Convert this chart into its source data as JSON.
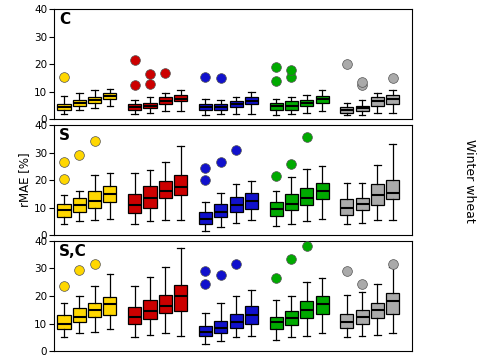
{
  "panel_labels": [
    "C",
    "S",
    "S,C"
  ],
  "ylabel": "rMAE [%]",
  "right_label": "Winter wheat",
  "ylim": [
    0,
    40
  ],
  "yticks": [
    0,
    10,
    20,
    30,
    40
  ],
  "colors": {
    "yellow": "#FFD700",
    "red": "#CC0000",
    "blue": "#1111CC",
    "green": "#00AA00",
    "gray": "#AAAAAA"
  },
  "panel_C": {
    "groups": [
      {
        "color": "yellow",
        "boxes": [
          {
            "whislo": 2.0,
            "q1": 3.5,
            "med": 4.5,
            "q3": 5.5,
            "whishi": 8.5,
            "fliers": [
              15.5
            ]
          },
          {
            "whislo": 3.5,
            "q1": 5.0,
            "med": 6.0,
            "q3": 7.0,
            "whishi": 9.5,
            "fliers": []
          },
          {
            "whislo": 4.0,
            "q1": 6.0,
            "med": 7.0,
            "q3": 8.0,
            "whishi": 10.5,
            "fliers": []
          },
          {
            "whislo": 5.0,
            "q1": 7.5,
            "med": 8.5,
            "q3": 9.5,
            "whishi": 11.0,
            "fliers": []
          }
        ]
      },
      {
        "color": "red",
        "boxes": [
          {
            "whislo": 2.0,
            "q1": 3.5,
            "med": 4.5,
            "q3": 5.5,
            "whishi": 7.0,
            "fliers": [
              12.5,
              21.5
            ]
          },
          {
            "whislo": 2.5,
            "q1": 4.0,
            "med": 5.0,
            "q3": 6.0,
            "whishi": 8.0,
            "fliers": [
              13.0,
              16.5
            ]
          },
          {
            "whislo": 3.0,
            "q1": 5.5,
            "med": 6.5,
            "q3": 8.0,
            "whishi": 9.5,
            "fliers": [
              17.0
            ]
          },
          {
            "whislo": 3.0,
            "q1": 6.5,
            "med": 7.5,
            "q3": 9.0,
            "whishi": 10.5,
            "fliers": []
          }
        ]
      },
      {
        "color": "blue",
        "boxes": [
          {
            "whislo": 1.5,
            "q1": 3.5,
            "med": 4.5,
            "q3": 5.5,
            "whishi": 7.5,
            "fliers": [
              15.5
            ]
          },
          {
            "whislo": 2.0,
            "q1": 3.5,
            "med": 4.5,
            "q3": 5.5,
            "whishi": 7.0,
            "fliers": [
              15.0
            ]
          },
          {
            "whislo": 2.0,
            "q1": 4.5,
            "med": 5.5,
            "q3": 6.5,
            "whishi": 8.0,
            "fliers": []
          },
          {
            "whislo": 2.0,
            "q1": 5.5,
            "med": 6.5,
            "q3": 8.0,
            "whishi": 10.0,
            "fliers": []
          }
        ]
      },
      {
        "color": "green",
        "boxes": [
          {
            "whislo": 1.5,
            "q1": 3.5,
            "med": 5.0,
            "q3": 6.0,
            "whishi": 7.5,
            "fliers": [
              14.0,
              19.0
            ]
          },
          {
            "whislo": 2.0,
            "q1": 3.5,
            "med": 5.0,
            "q3": 6.5,
            "whishi": 8.0,
            "fliers": [
              15.5,
              18.0
            ]
          },
          {
            "whislo": 2.5,
            "q1": 5.0,
            "med": 6.0,
            "q3": 7.0,
            "whishi": 9.0,
            "fliers": []
          },
          {
            "whislo": 3.0,
            "q1": 6.0,
            "med": 7.5,
            "q3": 8.5,
            "whishi": 10.5,
            "fliers": []
          }
        ]
      },
      {
        "color": "gray",
        "boxes": [
          {
            "whislo": 1.5,
            "q1": 2.5,
            "med": 3.5,
            "q3": 4.5,
            "whishi": 6.0,
            "fliers": [
              20.0
            ]
          },
          {
            "whislo": 1.5,
            "q1": 3.0,
            "med": 4.0,
            "q3": 5.0,
            "whishi": 7.0,
            "fliers": [
              12.5,
              13.5
            ]
          },
          {
            "whislo": 2.5,
            "q1": 5.0,
            "med": 6.5,
            "q3": 8.0,
            "whishi": 9.5,
            "fliers": []
          },
          {
            "whislo": 2.5,
            "q1": 5.5,
            "med": 7.5,
            "q3": 9.0,
            "whishi": 10.5,
            "fliers": [
              15.0
            ]
          }
        ]
      }
    ]
  },
  "panel_S": {
    "groups": [
      {
        "color": "yellow",
        "boxes": [
          {
            "whislo": 4.0,
            "q1": 6.5,
            "med": 9.0,
            "q3": 11.5,
            "whishi": 14.5,
            "fliers": [
              20.5,
              26.5
            ]
          },
          {
            "whislo": 5.0,
            "q1": 8.5,
            "med": 11.0,
            "q3": 13.5,
            "whishi": 16.0,
            "fliers": [
              29.0
            ]
          },
          {
            "whislo": 5.5,
            "q1": 10.0,
            "med": 12.5,
            "q3": 16.0,
            "whishi": 22.0,
            "fliers": [
              34.0
            ]
          },
          {
            "whislo": 6.0,
            "q1": 12.0,
            "med": 15.0,
            "q3": 18.0,
            "whishi": 22.5,
            "fliers": []
          }
        ]
      },
      {
        "color": "red",
        "boxes": [
          {
            "whislo": 4.0,
            "q1": 8.0,
            "med": 11.0,
            "q3": 15.0,
            "whishi": 22.5,
            "fliers": []
          },
          {
            "whislo": 5.0,
            "q1": 10.0,
            "med": 13.5,
            "q3": 18.0,
            "whishi": 23.5,
            "fliers": []
          },
          {
            "whislo": 5.5,
            "q1": 13.5,
            "med": 16.0,
            "q3": 19.5,
            "whishi": 26.5,
            "fliers": []
          },
          {
            "whislo": 5.5,
            "q1": 14.5,
            "med": 17.5,
            "q3": 22.0,
            "whishi": 32.5,
            "fliers": []
          }
        ]
      },
      {
        "color": "blue",
        "boxes": [
          {
            "whislo": 1.5,
            "q1": 4.0,
            "med": 6.0,
            "q3": 8.5,
            "whishi": 12.0,
            "fliers": [
              20.0,
              24.5
            ]
          },
          {
            "whislo": 3.0,
            "q1": 6.5,
            "med": 8.5,
            "q3": 11.5,
            "whishi": 15.5,
            "fliers": [
              26.5
            ]
          },
          {
            "whislo": 4.5,
            "q1": 8.5,
            "med": 11.0,
            "q3": 14.0,
            "whishi": 18.5,
            "fliers": [
              31.0
            ]
          },
          {
            "whislo": 5.5,
            "q1": 9.5,
            "med": 12.5,
            "q3": 15.5,
            "whishi": 19.5,
            "fliers": []
          }
        ]
      },
      {
        "color": "green",
        "boxes": [
          {
            "whislo": 3.5,
            "q1": 7.0,
            "med": 9.5,
            "q3": 12.0,
            "whishi": 16.0,
            "fliers": [
              21.5
            ]
          },
          {
            "whislo": 4.0,
            "q1": 9.0,
            "med": 11.5,
            "q3": 15.0,
            "whishi": 21.0,
            "fliers": [
              26.0
            ]
          },
          {
            "whislo": 5.0,
            "q1": 11.0,
            "med": 13.5,
            "q3": 17.0,
            "whishi": 24.0,
            "fliers": [
              35.5
            ]
          },
          {
            "whislo": 6.0,
            "q1": 13.0,
            "med": 16.0,
            "q3": 19.0,
            "whishi": 25.0,
            "fliers": []
          }
        ]
      },
      {
        "color": "gray",
        "boxes": [
          {
            "whislo": 4.0,
            "q1": 7.5,
            "med": 10.0,
            "q3": 13.0,
            "whishi": 19.0,
            "fliers": []
          },
          {
            "whislo": 4.5,
            "q1": 9.0,
            "med": 11.5,
            "q3": 13.5,
            "whishi": 19.0,
            "fliers": []
          },
          {
            "whislo": 5.5,
            "q1": 11.0,
            "med": 14.5,
            "q3": 18.5,
            "whishi": 25.5,
            "fliers": []
          },
          {
            "whislo": 5.5,
            "q1": 13.0,
            "med": 15.5,
            "q3": 20.0,
            "whishi": 33.0,
            "fliers": []
          }
        ]
      }
    ]
  },
  "panel_SC": {
    "groups": [
      {
        "color": "yellow",
        "boxes": [
          {
            "whislo": 5.0,
            "q1": 8.0,
            "med": 10.0,
            "q3": 13.0,
            "whishi": 17.5,
            "fliers": [
              23.5
            ]
          },
          {
            "whislo": 6.5,
            "q1": 10.5,
            "med": 12.5,
            "q3": 15.5,
            "whishi": 20.0,
            "fliers": [
              29.5
            ]
          },
          {
            "whislo": 7.0,
            "q1": 12.5,
            "med": 15.0,
            "q3": 17.5,
            "whishi": 23.5,
            "fliers": [
              31.5
            ]
          },
          {
            "whislo": 8.0,
            "q1": 13.0,
            "med": 17.0,
            "q3": 19.5,
            "whishi": 28.0,
            "fliers": []
          }
        ]
      },
      {
        "color": "red",
        "boxes": [
          {
            "whislo": 5.0,
            "q1": 10.0,
            "med": 12.5,
            "q3": 16.0,
            "whishi": 23.5,
            "fliers": []
          },
          {
            "whislo": 6.0,
            "q1": 11.5,
            "med": 14.5,
            "q3": 18.5,
            "whishi": 27.0,
            "fliers": []
          },
          {
            "whislo": 6.5,
            "q1": 14.0,
            "med": 16.5,
            "q3": 20.5,
            "whishi": 30.5,
            "fliers": []
          },
          {
            "whislo": 5.5,
            "q1": 14.5,
            "med": 20.0,
            "q3": 24.0,
            "whishi": 37.5,
            "fliers": []
          }
        ]
      },
      {
        "color": "blue",
        "boxes": [
          {
            "whislo": 2.5,
            "q1": 5.5,
            "med": 7.0,
            "q3": 9.0,
            "whishi": 14.0,
            "fliers": [
              24.5,
              29.0
            ]
          },
          {
            "whislo": 3.5,
            "q1": 6.5,
            "med": 8.5,
            "q3": 11.0,
            "whishi": 17.5,
            "fliers": [
              27.5
            ]
          },
          {
            "whislo": 5.0,
            "q1": 8.5,
            "med": 10.5,
            "q3": 13.5,
            "whishi": 20.0,
            "fliers": [
              31.5
            ]
          },
          {
            "whislo": 5.5,
            "q1": 10.0,
            "med": 13.0,
            "q3": 16.5,
            "whishi": 22.0,
            "fliers": []
          }
        ]
      },
      {
        "color": "green",
        "boxes": [
          {
            "whislo": 4.0,
            "q1": 8.0,
            "med": 10.5,
            "q3": 12.5,
            "whishi": 18.5,
            "fliers": [
              26.5
            ]
          },
          {
            "whislo": 5.0,
            "q1": 9.5,
            "med": 12.0,
            "q3": 14.5,
            "whishi": 20.0,
            "fliers": [
              33.5
            ]
          },
          {
            "whislo": 5.5,
            "q1": 12.0,
            "med": 15.0,
            "q3": 18.0,
            "whishi": 25.0,
            "fliers": [
              38.0
            ]
          },
          {
            "whislo": 6.5,
            "q1": 13.5,
            "med": 17.0,
            "q3": 20.0,
            "whishi": 26.5,
            "fliers": []
          }
        ]
      },
      {
        "color": "gray",
        "boxes": [
          {
            "whislo": 5.0,
            "q1": 8.5,
            "med": 10.5,
            "q3": 13.5,
            "whishi": 20.5,
            "fliers": [
              29.0
            ]
          },
          {
            "whislo": 5.5,
            "q1": 10.0,
            "med": 12.5,
            "q3": 15.0,
            "whishi": 21.5,
            "fliers": [
              24.5
            ]
          },
          {
            "whislo": 6.0,
            "q1": 12.0,
            "med": 15.0,
            "q3": 17.5,
            "whishi": 24.5,
            "fliers": []
          },
          {
            "whislo": 6.5,
            "q1": 13.5,
            "med": 18.0,
            "q3": 21.0,
            "whishi": 30.5,
            "fliers": [
              31.5
            ]
          }
        ]
      }
    ]
  }
}
